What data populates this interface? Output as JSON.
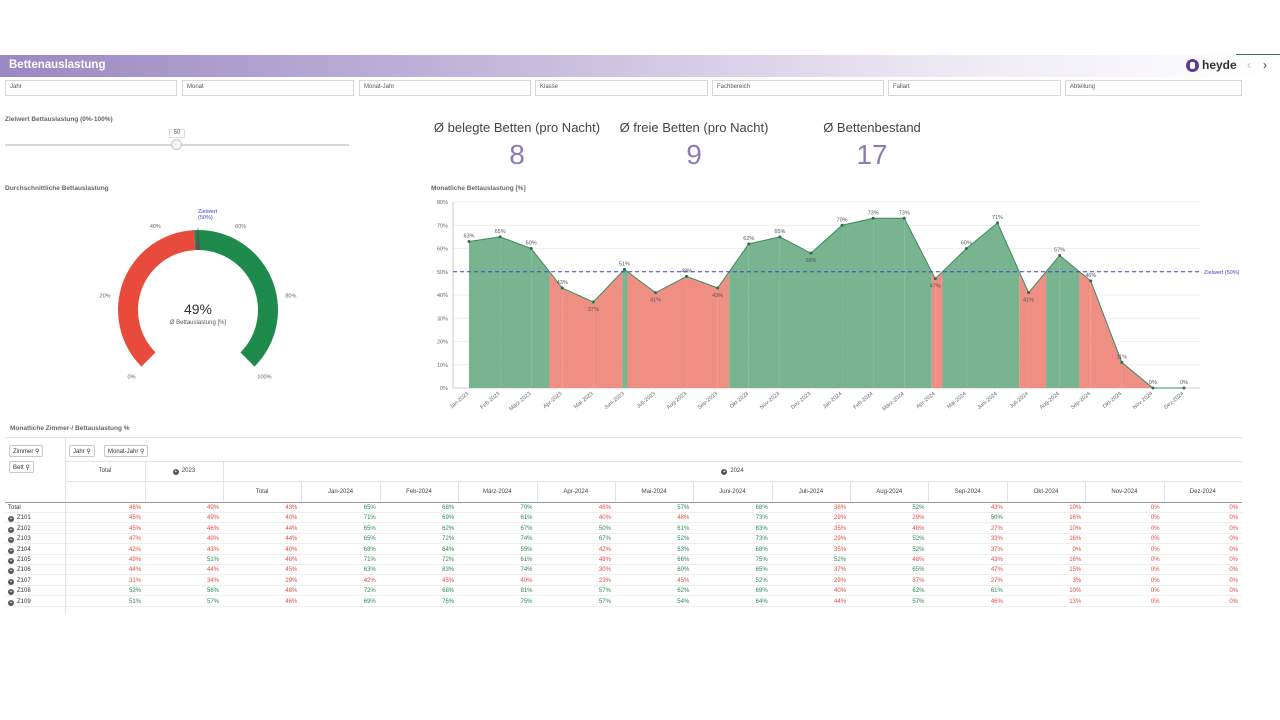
{
  "app": {
    "title": "Bettenauslastung",
    "logo": "heyde",
    "prev_icon": "‹",
    "next_icon": "›"
  },
  "filters": [
    "Jahr",
    "Monat",
    "Monat-Jahr",
    "Klasse",
    "Fachbereich",
    "Fallart",
    "Abteilung"
  ],
  "slider": {
    "label": "Zielwert Bettauslastung (0%-100%)",
    "value": "50"
  },
  "kpis": [
    {
      "label": "Ø belegte Betten (pro Nacht)",
      "value": "8"
    },
    {
      "label": "Ø freie Betten (pro Nacht)",
      "value": "9"
    },
    {
      "label": "Ø Bettenbestand",
      "value": "17"
    }
  ],
  "gauge": {
    "title": "Durchschnittliche Bettauslastung",
    "value": "49%",
    "subtitle": "Ø Bettauslastung [%]",
    "target_label_1": "Zielwert",
    "target_label_2": "(50%)",
    "ticks": [
      "0%",
      "20%",
      "40%",
      "60%",
      "80%",
      "100%"
    ],
    "fraction": 0.49,
    "target": 0.5,
    "colors": {
      "below": "#e84b3c",
      "above": "#1e8a4c",
      "needle": "#555555"
    }
  },
  "chart_data": {
    "type": "area",
    "title": "Monatliche Bettauslastung [%]",
    "categories": [
      "Jan-2023",
      "Feb-2023",
      "März-2023",
      "Apr-2023",
      "Mai-2023",
      "Juni-2023",
      "Juli-2023",
      "Aug-2023",
      "Sep-2023",
      "Okt-2023",
      "Nov-2023",
      "Dez-2023",
      "Jan-2024",
      "Feb-2024",
      "März-2024",
      "Apr-2024",
      "Mai-2024",
      "Juni-2024",
      "Juli-2024",
      "Aug-2024",
      "Sep-2024",
      "Okt-2024",
      "Nov-2024",
      "Dez-2024"
    ],
    "values": [
      63,
      65,
      60,
      43,
      37,
      51,
      41,
      48,
      43,
      62,
      65,
      58,
      70,
      73,
      73,
      47,
      60,
      71,
      41,
      57,
      46,
      11,
      0,
      0
    ],
    "value_labels": [
      "63%",
      "65%",
      "60%",
      "43%",
      "37%",
      "51%",
      "41%",
      "48%",
      "43%",
      "62%",
      "65%",
      "58%",
      "70%",
      "73%",
      "73%",
      "47%",
      "60%",
      "71%",
      "41%",
      "57%",
      "46%",
      "11%",
      "0%",
      "0%"
    ],
    "ylim": [
      0,
      80
    ],
    "yticks": [
      "0%",
      "10%",
      "20%",
      "30%",
      "40%",
      "50%",
      "60%",
      "70%",
      "80%"
    ],
    "target": 50,
    "target_label": "Zielwert (50%)",
    "grid": true,
    "colors": {
      "above": "#78b48f",
      "below": "#ef8f83",
      "target_line": "#3d46c4"
    }
  },
  "table": {
    "title": "Monatliche Zimmer-/ Bettauslastung %",
    "dims_left": [
      "Zimmer",
      "Bett"
    ],
    "dims_top": [
      "Jahr",
      "Monat-Jahr"
    ],
    "search_icon": "⚲",
    "expand_icon": "+",
    "header_total": "Total",
    "year_2023": "2023",
    "year_2024": "2024",
    "month_headers": [
      "Total",
      "Jan-2024",
      "Feb-2024",
      "März-2024",
      "Apr-2024",
      "Mai-2024",
      "Juni-2024",
      "Juli-2024",
      "Aug-2024",
      "Sep-2024",
      "Okt-2024",
      "Nov-2024",
      "Dez-2024"
    ],
    "rows": [
      {
        "label": "Total",
        "expand": false,
        "cells": [
          "46%",
          "49%",
          "43%",
          "65%",
          "68%",
          "70%",
          "46%",
          "57%",
          "68%",
          "38%",
          "52%",
          "43%",
          "10%",
          "0%",
          "0%"
        ]
      },
      {
        "label": "Z101",
        "expand": true,
        "cells": [
          "45%",
          "49%",
          "40%",
          "71%",
          "69%",
          "61%",
          "40%",
          "48%",
          "73%",
          "29%",
          "29%",
          "50%",
          "16%",
          "0%",
          "0%"
        ]
      },
      {
        "label": "Z102",
        "expand": true,
        "cells": [
          "45%",
          "46%",
          "44%",
          "65%",
          "62%",
          "67%",
          "50%",
          "61%",
          "83%",
          "35%",
          "48%",
          "27%",
          "10%",
          "0%",
          "0%"
        ]
      },
      {
        "label": "Z103",
        "expand": true,
        "cells": [
          "47%",
          "49%",
          "44%",
          "65%",
          "72%",
          "74%",
          "67%",
          "52%",
          "73%",
          "29%",
          "52%",
          "33%",
          "16%",
          "0%",
          "0%"
        ]
      },
      {
        "label": "Z104",
        "expand": true,
        "cells": [
          "42%",
          "43%",
          "40%",
          "68%",
          "64%",
          "55%",
          "42%",
          "63%",
          "68%",
          "35%",
          "52%",
          "37%",
          "0%",
          "0%",
          "0%"
        ]
      },
      {
        "label": "Z105",
        "expand": true,
        "cells": [
          "49%",
          "51%",
          "48%",
          "71%",
          "72%",
          "61%",
          "48%",
          "66%",
          "75%",
          "52%",
          "48%",
          "43%",
          "16%",
          "0%",
          "0%"
        ]
      },
      {
        "label": "Z106",
        "expand": true,
        "cells": [
          "44%",
          "44%",
          "45%",
          "63%",
          "83%",
          "74%",
          "30%",
          "60%",
          "65%",
          "37%",
          "65%",
          "47%",
          "15%",
          "0%",
          "0%"
        ]
      },
      {
        "label": "Z107",
        "expand": true,
        "cells": [
          "31%",
          "34%",
          "29%",
          "42%",
          "45%",
          "40%",
          "23%",
          "45%",
          "52%",
          "29%",
          "37%",
          "27%",
          "3%",
          "0%",
          "0%"
        ]
      },
      {
        "label": "Z108",
        "expand": true,
        "cells": [
          "52%",
          "56%",
          "48%",
          "72%",
          "68%",
          "81%",
          "57%",
          "62%",
          "69%",
          "40%",
          "62%",
          "61%",
          "10%",
          "0%",
          "0%"
        ]
      },
      {
        "label": "Z109",
        "expand": true,
        "cells": [
          "51%",
          "57%",
          "46%",
          "69%",
          "76%",
          "75%",
          "57%",
          "54%",
          "64%",
          "44%",
          "57%",
          "46%",
          "13%",
          "0%",
          "0%"
        ]
      }
    ]
  }
}
